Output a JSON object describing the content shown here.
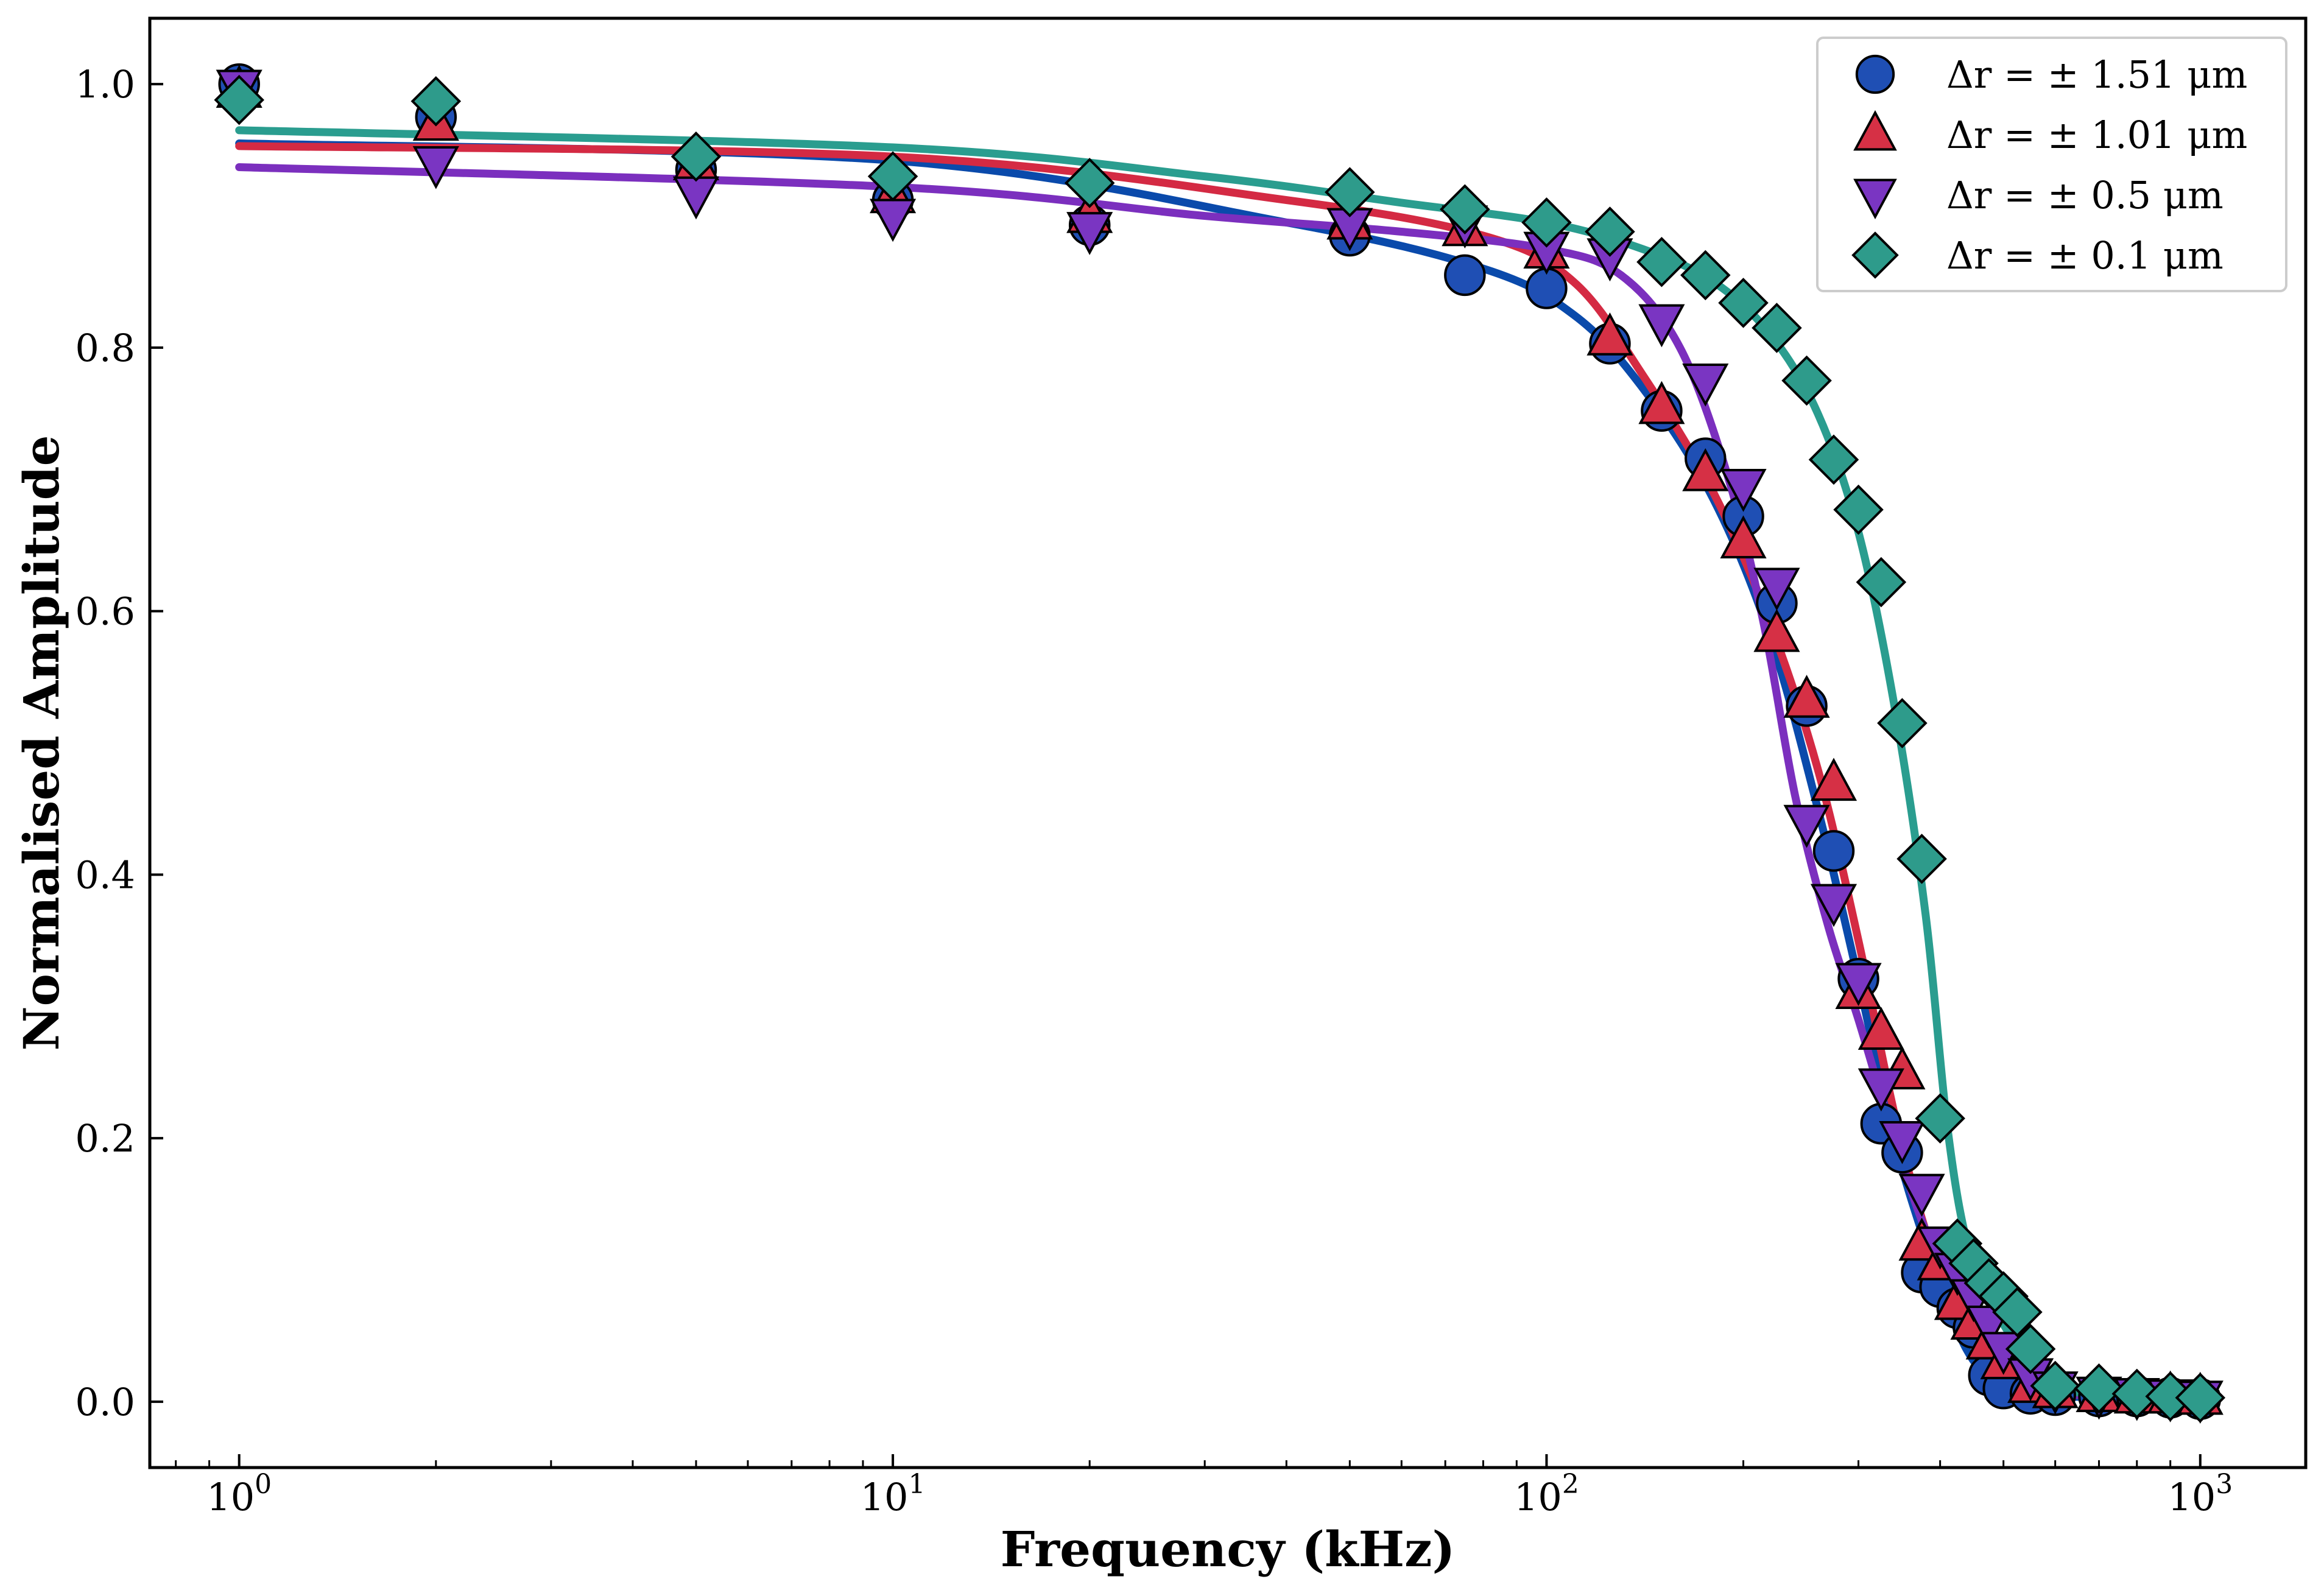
{
  "chart_data": {
    "type": "scatter",
    "title": "",
    "xlabel": "Frequency (kHz)",
    "ylabel": "Normalised Amplitude",
    "xscale": "log",
    "xlim": [
      0.73,
      1450
    ],
    "ylim": [
      -0.05,
      1.05
    ],
    "x_ticks": [
      {
        "value": 1,
        "base": "10",
        "exp": "0"
      },
      {
        "value": 10,
        "base": "10",
        "exp": "1"
      },
      {
        "value": 100,
        "base": "10",
        "exp": "2"
      },
      {
        "value": 1000,
        "base": "10",
        "exp": "3"
      }
    ],
    "y_ticks": [
      {
        "value": 0.0,
        "label": "0.0"
      },
      {
        "value": 0.2,
        "label": "0.2"
      },
      {
        "value": 0.4,
        "label": "0.4"
      },
      {
        "value": 0.6,
        "label": "0.6"
      },
      {
        "value": 0.8,
        "label": "0.8"
      },
      {
        "value": 1.0,
        "label": "1.0"
      }
    ],
    "grid": false,
    "legend_position": "top-right",
    "series": [
      {
        "name": "Δr = ± 1.51 μm",
        "marker": "circle",
        "color": "#1f4fb4",
        "fit_color": "#0a4aab",
        "x": [
          1,
          2,
          5,
          10,
          20,
          50,
          75,
          100,
          125,
          150,
          175,
          200,
          225,
          250,
          275,
          300,
          325,
          350,
          375,
          400,
          425,
          450,
          475,
          500,
          550,
          600,
          700,
          800,
          900,
          1000
        ],
        "y": [
          1.0,
          0.975,
          0.935,
          0.912,
          0.893,
          0.885,
          0.855,
          0.845,
          0.803,
          0.752,
          0.716,
          0.672,
          0.606,
          0.528,
          0.418,
          0.321,
          0.211,
          0.189,
          0.098,
          0.087,
          0.071,
          0.056,
          0.02,
          0.01,
          0.006,
          0.005,
          0.004,
          0.004,
          0.003,
          0.002
        ],
        "fit": [
          [
            1,
            0.955
          ],
          [
            10,
            0.942
          ],
          [
            40,
            0.895
          ],
          [
            80,
            0.86
          ],
          [
            110,
            0.825
          ],
          [
            140,
            0.77
          ],
          [
            180,
            0.685
          ],
          [
            220,
            0.58
          ],
          [
            260,
            0.45
          ],
          [
            300,
            0.32
          ],
          [
            340,
            0.2
          ],
          [
            380,
            0.12
          ],
          [
            420,
            0.06
          ],
          [
            460,
            0.025
          ],
          [
            520,
            0.008
          ],
          [
            600,
            0.004
          ],
          [
            1000,
            0.003
          ]
        ]
      },
      {
        "name": "Δr = ± 1.01 μm",
        "marker": "triangle-up",
        "color": "#d63045",
        "fit_color": "#d42a43",
        "x": [
          1,
          2,
          5,
          10,
          20,
          50,
          75,
          100,
          125,
          150,
          175,
          200,
          225,
          250,
          275,
          300,
          325,
          350,
          375,
          400,
          425,
          450,
          475,
          500,
          550,
          600,
          700,
          800,
          900,
          1000
        ],
        "y": [
          0.995,
          0.97,
          0.94,
          0.915,
          0.9,
          0.895,
          0.89,
          0.873,
          0.807,
          0.755,
          0.704,
          0.653,
          0.582,
          0.532,
          0.469,
          0.311,
          0.28,
          0.25,
          0.12,
          0.105,
          0.075,
          0.06,
          0.045,
          0.03,
          0.012,
          0.008,
          0.005,
          0.004,
          0.004,
          0.003
        ],
        "fit": [
          [
            1,
            0.953
          ],
          [
            10,
            0.945
          ],
          [
            40,
            0.912
          ],
          [
            80,
            0.885
          ],
          [
            110,
            0.85
          ],
          [
            140,
            0.78
          ],
          [
            180,
            0.69
          ],
          [
            220,
            0.59
          ],
          [
            260,
            0.48
          ],
          [
            300,
            0.35
          ],
          [
            340,
            0.22
          ],
          [
            380,
            0.13
          ],
          [
            420,
            0.075
          ],
          [
            470,
            0.04
          ],
          [
            530,
            0.015
          ],
          [
            600,
            0.006
          ],
          [
            1000,
            0.003
          ]
        ]
      },
      {
        "name": "Δr = ± 0.5 μm",
        "marker": "triangle-down",
        "color": "#7a35c2",
        "fit_color": "#7b2fbe",
        "x": [
          1,
          2,
          5,
          10,
          20,
          50,
          75,
          100,
          125,
          150,
          175,
          200,
          225,
          250,
          275,
          300,
          325,
          350,
          375,
          400,
          425,
          450,
          475,
          500,
          550,
          600,
          700,
          800,
          900,
          1000
        ],
        "y": [
          0.998,
          0.94,
          0.917,
          0.9,
          0.89,
          0.893,
          0.895,
          0.875,
          0.87,
          0.82,
          0.775,
          0.695,
          0.62,
          0.44,
          0.38,
          0.32,
          0.24,
          0.2,
          0.16,
          0.12,
          0.1,
          0.08,
          0.06,
          0.04,
          0.02,
          0.01,
          0.006,
          0.005,
          0.004,
          0.003
        ],
        "fit": [
          [
            1,
            0.937
          ],
          [
            10,
            0.922
          ],
          [
            30,
            0.9
          ],
          [
            60,
            0.888
          ],
          [
            100,
            0.875
          ],
          [
            130,
            0.855
          ],
          [
            160,
            0.8
          ],
          [
            190,
            0.7
          ],
          [
            215,
            0.59
          ],
          [
            240,
            0.46
          ],
          [
            270,
            0.36
          ],
          [
            300,
            0.29
          ],
          [
            340,
            0.2
          ],
          [
            380,
            0.13
          ],
          [
            420,
            0.085
          ],
          [
            470,
            0.05
          ],
          [
            540,
            0.02
          ],
          [
            620,
            0.006
          ],
          [
            1000,
            0.003
          ]
        ]
      },
      {
        "name": "Δr = ± 0.1 μm",
        "marker": "diamond",
        "color": "#2e9b8b",
        "fit_color": "#2a9d8f",
        "x": [
          1,
          2,
          5,
          10,
          20,
          50,
          75,
          100,
          125,
          150,
          175,
          200,
          225,
          250,
          275,
          300,
          325,
          350,
          375,
          400,
          425,
          450,
          475,
          500,
          525,
          550,
          600,
          700,
          800,
          900,
          1000
        ],
        "y": [
          0.988,
          0.987,
          0.945,
          0.93,
          0.925,
          0.918,
          0.905,
          0.895,
          0.888,
          0.865,
          0.855,
          0.834,
          0.815,
          0.775,
          0.715,
          0.677,
          0.622,
          0.515,
          0.412,
          0.215,
          0.12,
          0.105,
          0.09,
          0.08,
          0.068,
          0.04,
          0.012,
          0.01,
          0.006,
          0.004,
          0.003
        ],
        "fit": [
          [
            1,
            0.965
          ],
          [
            10,
            0.952
          ],
          [
            30,
            0.93
          ],
          [
            60,
            0.91
          ],
          [
            100,
            0.895
          ],
          [
            140,
            0.875
          ],
          [
            180,
            0.85
          ],
          [
            220,
            0.81
          ],
          [
            260,
            0.75
          ],
          [
            300,
            0.66
          ],
          [
            340,
            0.53
          ],
          [
            380,
            0.37
          ],
          [
            410,
            0.21
          ],
          [
            440,
            0.12
          ],
          [
            480,
            0.075
          ],
          [
            530,
            0.04
          ],
          [
            600,
            0.012
          ],
          [
            700,
            0.006
          ],
          [
            1000,
            0.003
          ]
        ]
      }
    ]
  }
}
